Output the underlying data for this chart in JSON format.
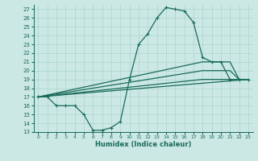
{
  "xlabel": "Humidex (Indice chaleur)",
  "bg_color": "#cce8e4",
  "line_color": "#1a6b5a",
  "grid_color": "#aad4ce",
  "xlim": [
    -0.5,
    23.5
  ],
  "ylim": [
    13,
    27.5
  ],
  "yticks": [
    13,
    14,
    15,
    16,
    17,
    18,
    19,
    20,
    21,
    22,
    23,
    24,
    25,
    26,
    27
  ],
  "xticks": [
    0,
    1,
    2,
    3,
    4,
    5,
    6,
    7,
    8,
    9,
    10,
    11,
    12,
    13,
    14,
    15,
    16,
    17,
    18,
    19,
    20,
    21,
    22,
    23
  ],
  "line1_x": [
    0,
    1,
    2,
    3,
    4,
    5,
    6,
    7,
    8,
    9,
    10,
    11,
    12,
    13,
    14,
    15,
    16,
    17,
    18,
    19,
    20,
    21,
    22,
    23
  ],
  "line1_y": [
    17,
    17,
    16,
    16,
    16,
    15,
    13.2,
    13.2,
    13.5,
    14.2,
    19,
    23,
    24.2,
    26,
    27.2,
    27,
    26.8,
    25.5,
    21.5,
    21,
    21,
    19,
    19,
    19
  ],
  "line2_x": [
    0,
    23
  ],
  "line2_y": [
    17,
    19
  ],
  "line3_x": [
    0,
    18,
    21,
    22,
    23
  ],
  "line3_y": [
    17,
    21,
    21,
    19,
    19
  ],
  "line4_x": [
    0,
    18,
    21,
    22,
    23
  ],
  "line4_y": [
    17,
    20,
    20,
    19,
    19
  ],
  "line5_x": [
    0,
    18,
    21,
    22,
    23
  ],
  "line5_y": [
    17,
    19,
    19,
    19,
    19
  ]
}
